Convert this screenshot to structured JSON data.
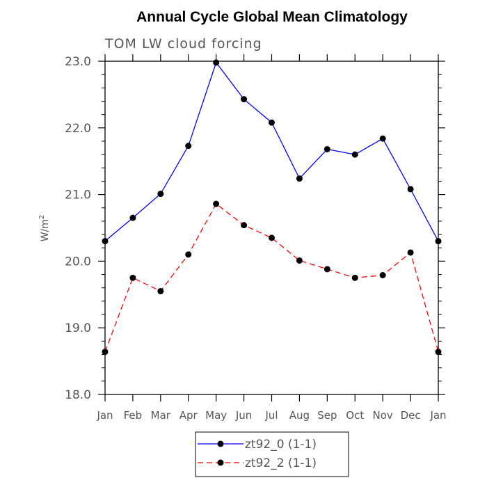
{
  "chart_data": {
    "type": "line",
    "title": "Annual Cycle Global Mean Climatology",
    "subtitle": "TOM LW cloud forcing",
    "ylabel_base": "W/m",
    "ylabel_sup": "2",
    "xlabel": "",
    "categories": [
      "Jan",
      "Feb",
      "Mar",
      "Apr",
      "May",
      "Jun",
      "Jul",
      "Aug",
      "Sep",
      "Oct",
      "Nov",
      "Dec",
      "Jan"
    ],
    "ylim": [
      18.0,
      23.0
    ],
    "yticks": [
      "18.0",
      "19.0",
      "20.0",
      "21.0",
      "22.0",
      "23.0"
    ],
    "series": [
      {
        "name": "zt92_0 (1-1)",
        "color": "#0000ff",
        "dash": "solid",
        "values": [
          20.3,
          20.65,
          21.01,
          21.73,
          22.98,
          22.43,
          22.08,
          21.24,
          21.68,
          21.6,
          21.84,
          21.08,
          20.3
        ]
      },
      {
        "name": "zt92_2 (1-1)",
        "color": "#ff0000",
        "dash": "dashed",
        "values": [
          18.64,
          19.75,
          19.55,
          20.1,
          20.86,
          20.54,
          20.35,
          20.01,
          19.88,
          19.75,
          19.79,
          20.13,
          18.64
        ]
      }
    ],
    "legend_position": "bottom-center",
    "grid": false
  }
}
